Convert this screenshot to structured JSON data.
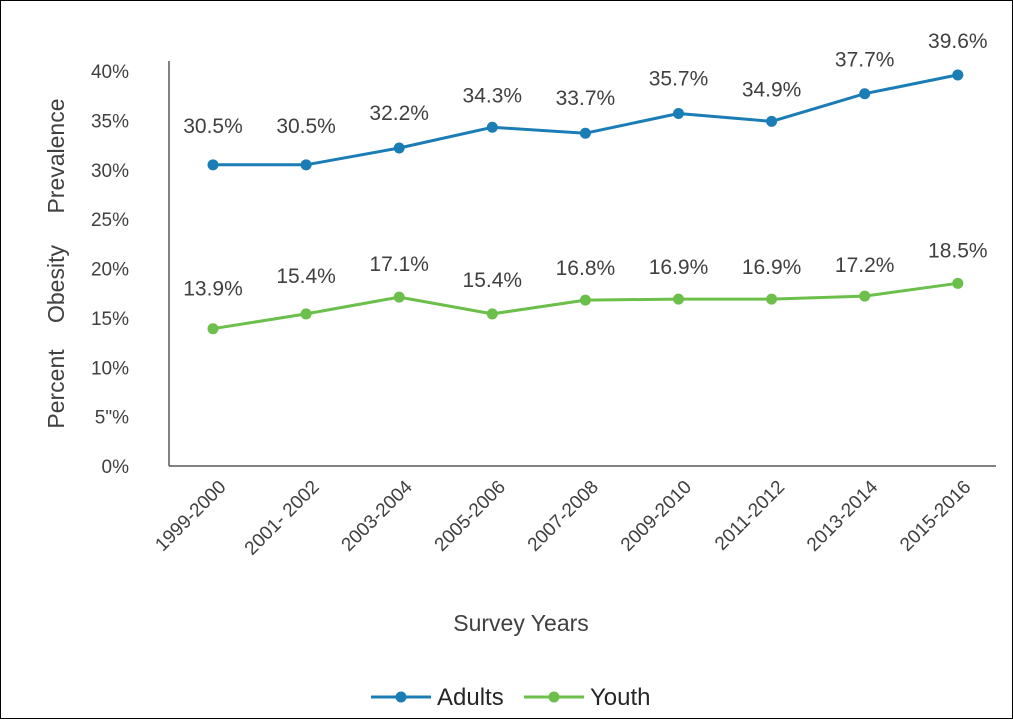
{
  "chart_data": {
    "type": "line",
    "title": "",
    "ylabel": "Percent Obesity Prevalence",
    "ylabel_words": [
      "Percent",
      "Obesity",
      "Prevalence"
    ],
    "xlabel": "Survey Years",
    "categories": [
      "1999-2000",
      "2001- 2002",
      "2003-2004",
      "2005-2006",
      "2007-2008",
      "2009-2010",
      "2011-2012",
      "2013-2014",
      "2015-2016"
    ],
    "ylim": [
      0,
      40
    ],
    "yticks": [
      0,
      5,
      10,
      15,
      20,
      25,
      30,
      35,
      40
    ],
    "ytick_labels": [
      "0%",
      "5\"%",
      "10%",
      "15%",
      "20%",
      "25%",
      "30%",
      "35%",
      "40%"
    ],
    "series": [
      {
        "name": "Adults",
        "color": "#1B7DB5",
        "values": [
          30.5,
          30.5,
          32.2,
          34.3,
          33.7,
          35.7,
          34.9,
          37.7,
          39.6
        ],
        "labels": [
          "30.5%",
          "30.5%",
          "32.2%",
          "34.3%",
          "33.7%",
          "35.7%",
          "34.9%",
          "37.7%",
          "39.6%"
        ]
      },
      {
        "name": "Youth",
        "color": "#6BBF4A",
        "values": [
          13.9,
          15.4,
          17.1,
          15.4,
          16.8,
          16.9,
          16.9,
          17.2,
          18.5
        ],
        "labels": [
          "13.9%",
          "15.4%",
          "17.1%",
          "15.4%",
          "16.8%",
          "16.9%",
          "16.9%",
          "17.2%",
          "18.5%"
        ]
      }
    ],
    "grid": false,
    "legend_position": "bottom"
  }
}
